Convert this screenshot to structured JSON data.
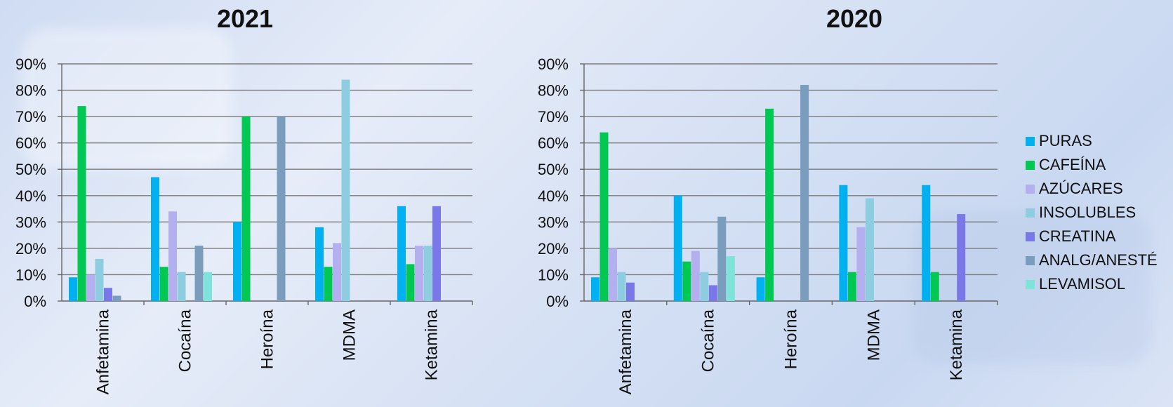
{
  "chart_data": [
    {
      "type": "bar",
      "title": "2021",
      "categories": [
        "Anfetamina",
        "Cocaína",
        "Heroína",
        "MDMA",
        "Ketamina"
      ],
      "ylim": [
        0,
        90
      ],
      "yticks": [
        "0%",
        "10%",
        "20%",
        "30%",
        "40%",
        "50%",
        "60%",
        "70%",
        "80%",
        "90%"
      ],
      "grid": true,
      "series": [
        {
          "name": "PURAS",
          "values": [
            9,
            47,
            30,
            28,
            36
          ]
        },
        {
          "name": "CAFEÍNA",
          "values": [
            74,
            13,
            70,
            13,
            14
          ]
        },
        {
          "name": "AZÚCARES",
          "values": [
            10,
            34,
            0,
            22,
            21
          ]
        },
        {
          "name": "INSOLUBLES",
          "values": [
            16,
            11,
            0,
            84,
            21
          ]
        },
        {
          "name": "CREATINA",
          "values": [
            5,
            0,
            0,
            0,
            36
          ]
        },
        {
          "name": "ANALG/ANESTÉ",
          "values": [
            2,
            21,
            70,
            0,
            0
          ]
        },
        {
          "name": "LEVAMISOL",
          "values": [
            0,
            11,
            0,
            0,
            0
          ]
        }
      ]
    },
    {
      "type": "bar",
      "title": "2020",
      "categories": [
        "Anfetamina",
        "Cocaína",
        "Heroína",
        "MDMA",
        "Ketamina"
      ],
      "ylim": [
        0,
        90
      ],
      "yticks": [
        "0%",
        "10%",
        "20%",
        "30%",
        "40%",
        "50%",
        "60%",
        "70%",
        "80%",
        "90%"
      ],
      "grid": true,
      "legend": "right",
      "series": [
        {
          "name": "PURAS",
          "values": [
            9,
            40,
            9,
            44,
            44
          ]
        },
        {
          "name": "CAFEÍNA",
          "values": [
            64,
            15,
            73,
            11,
            11
          ]
        },
        {
          "name": "AZÚCARES",
          "values": [
            20,
            19,
            0,
            28,
            0
          ]
        },
        {
          "name": "INSOLUBLES",
          "values": [
            11,
            11,
            0,
            39,
            0
          ]
        },
        {
          "name": "CREATINA",
          "values": [
            7,
            6,
            0,
            0,
            33
          ]
        },
        {
          "name": "ANALG/ANESTÉ",
          "values": [
            0,
            32,
            82,
            0,
            0
          ]
        },
        {
          "name": "LEVAMISOL",
          "values": [
            0,
            17,
            0,
            0,
            0
          ]
        }
      ]
    }
  ],
  "colors": {
    "PURAS": "#00b0f0",
    "CAFEÍNA": "#00c853",
    "AZÚCARES": "#b4b0f0",
    "INSOLUBLES": "#8ecde0",
    "CREATINA": "#7a78e8",
    "ANALG/ANESTÉ": "#7a9dbd",
    "LEVAMISOL": "#7ee3d8"
  },
  "legend": [
    "PURAS",
    "CAFEÍNA",
    "AZÚCARES",
    "INSOLUBLES",
    "CREATINA",
    "ANALG/ANESTÉ",
    "LEVAMISOL"
  ]
}
